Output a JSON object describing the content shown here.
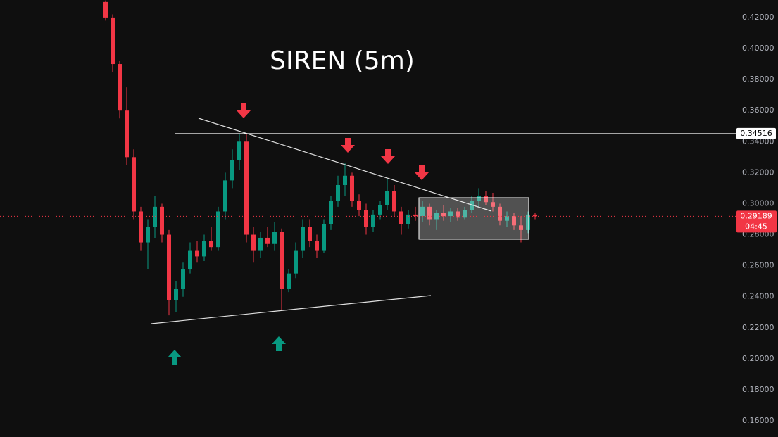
{
  "chart_data": {
    "type": "candlestick",
    "title": "SIREN (5m)",
    "ylim": [
      0.1496,
      0.4313
    ],
    "yticks": [
      {
        "value": 0.16,
        "label": "0.16000"
      },
      {
        "value": 0.18,
        "label": "0.18000"
      },
      {
        "value": 0.2,
        "label": "0.20000"
      },
      {
        "value": 0.22,
        "label": "0.22000"
      },
      {
        "value": 0.24,
        "label": "0.24000"
      },
      {
        "value": 0.26,
        "label": "0.26000"
      },
      {
        "value": 0.28,
        "label": "0.28000"
      },
      {
        "value": 0.3,
        "label": "0.30000"
      },
      {
        "value": 0.32,
        "label": "0.32000"
      },
      {
        "value": 0.34,
        "label": "0.34000"
      },
      {
        "value": 0.36,
        "label": "0.36000"
      },
      {
        "value": 0.38,
        "label": "0.38000"
      },
      {
        "value": 0.4,
        "label": "0.40000"
      },
      {
        "value": 0.42,
        "label": "0.42000"
      }
    ],
    "up_color": "#089981",
    "down_color": "#f23645",
    "level": 0.34516,
    "last_price": 0.29189,
    "countdown": "04:45",
    "candles": [
      [
        0.43,
        0.431,
        0.418,
        0.42
      ],
      [
        0.42,
        0.422,
        0.385,
        0.39
      ],
      [
        0.39,
        0.392,
        0.355,
        0.36
      ],
      [
        0.36,
        0.375,
        0.325,
        0.33
      ],
      [
        0.33,
        0.335,
        0.29,
        0.295
      ],
      [
        0.295,
        0.298,
        0.27,
        0.275
      ],
      [
        0.275,
        0.29,
        0.258,
        0.285
      ],
      [
        0.285,
        0.305,
        0.278,
        0.298
      ],
      [
        0.298,
        0.3,
        0.275,
        0.28
      ],
      [
        0.28,
        0.283,
        0.228,
        0.238
      ],
      [
        0.238,
        0.25,
        0.23,
        0.245
      ],
      [
        0.245,
        0.262,
        0.24,
        0.258
      ],
      [
        0.258,
        0.275,
        0.255,
        0.27
      ],
      [
        0.27,
        0.276,
        0.262,
        0.266
      ],
      [
        0.266,
        0.28,
        0.263,
        0.276
      ],
      [
        0.276,
        0.285,
        0.27,
        0.272
      ],
      [
        0.272,
        0.298,
        0.27,
        0.295
      ],
      [
        0.295,
        0.32,
        0.29,
        0.315
      ],
      [
        0.315,
        0.335,
        0.31,
        0.328
      ],
      [
        0.328,
        0.345,
        0.322,
        0.34
      ],
      [
        0.34,
        0.345,
        0.275,
        0.28
      ],
      [
        0.28,
        0.285,
        0.262,
        0.27
      ],
      [
        0.27,
        0.282,
        0.265,
        0.278
      ],
      [
        0.278,
        0.285,
        0.272,
        0.274
      ],
      [
        0.274,
        0.288,
        0.27,
        0.282
      ],
      [
        0.282,
        0.284,
        0.231,
        0.245
      ],
      [
        0.245,
        0.258,
        0.243,
        0.255
      ],
      [
        0.255,
        0.275,
        0.252,
        0.27
      ],
      [
        0.27,
        0.29,
        0.265,
        0.285
      ],
      [
        0.285,
        0.29,
        0.272,
        0.276
      ],
      [
        0.276,
        0.28,
        0.265,
        0.27
      ],
      [
        0.27,
        0.29,
        0.268,
        0.287
      ],
      [
        0.287,
        0.305,
        0.283,
        0.302
      ],
      [
        0.302,
        0.318,
        0.298,
        0.312
      ],
      [
        0.312,
        0.326,
        0.305,
        0.318
      ],
      [
        0.318,
        0.32,
        0.298,
        0.302
      ],
      [
        0.302,
        0.306,
        0.292,
        0.296
      ],
      [
        0.296,
        0.3,
        0.28,
        0.285
      ],
      [
        0.285,
        0.296,
        0.282,
        0.293
      ],
      [
        0.293,
        0.302,
        0.29,
        0.299
      ],
      [
        0.299,
        0.316,
        0.296,
        0.308
      ],
      [
        0.308,
        0.312,
        0.292,
        0.295
      ],
      [
        0.295,
        0.298,
        0.28,
        0.287
      ],
      [
        0.287,
        0.296,
        0.284,
        0.293
      ],
      [
        0.293,
        0.298,
        0.289,
        0.292
      ],
      [
        0.292,
        0.302,
        0.288,
        0.298
      ],
      [
        0.298,
        0.3,
        0.286,
        0.29
      ],
      [
        0.29,
        0.296,
        0.283,
        0.294
      ],
      [
        0.294,
        0.299,
        0.289,
        0.292
      ],
      [
        0.292,
        0.297,
        0.288,
        0.295
      ],
      [
        0.295,
        0.297,
        0.289,
        0.291
      ],
      [
        0.291,
        0.298,
        0.29,
        0.296
      ],
      [
        0.296,
        0.305,
        0.294,
        0.302
      ],
      [
        0.302,
        0.31,
        0.298,
        0.305
      ],
      [
        0.305,
        0.308,
        0.299,
        0.301
      ],
      [
        0.301,
        0.307,
        0.295,
        0.298
      ],
      [
        0.298,
        0.3,
        0.286,
        0.289
      ],
      [
        0.289,
        0.295,
        0.285,
        0.292
      ],
      [
        0.292,
        0.294,
        0.283,
        0.286
      ],
      [
        0.286,
        0.292,
        0.275,
        0.283
      ],
      [
        0.283,
        0.295,
        0.281,
        0.293
      ],
      [
        0.293,
        0.294,
        0.29,
        0.29189
      ]
    ]
  }
}
